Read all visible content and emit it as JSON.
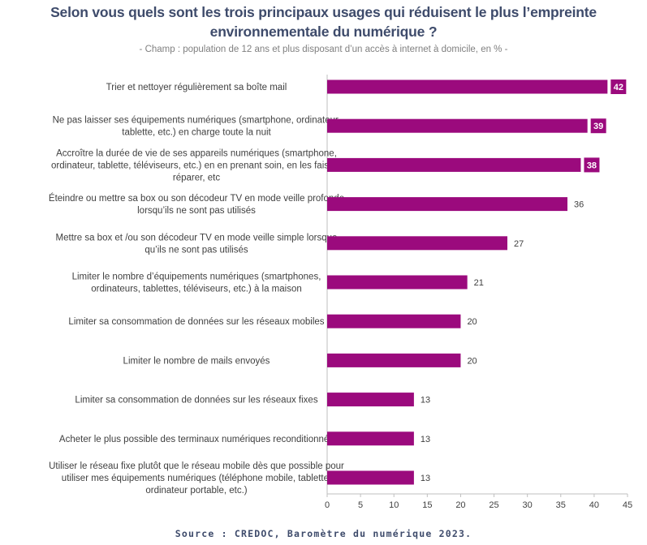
{
  "title": "Selon vous quels sont les trois principaux usages qui réduisent le plus l’empreinte environnementale du numérique ?",
  "subtitle": "- Champ : population de 12 ans et plus disposant d’un accès à internet à domicile, en % -",
  "source": "Source : CREDOC, Baromètre du numérique 2023.",
  "colors": {
    "bar": "#9b0a7d",
    "title": "#3e4b6b",
    "highlight_label_bg": "#9b0a7d"
  },
  "chart_data": {
    "type": "bar",
    "orientation": "horizontal",
    "categories": [
      [
        "Trier et nettoyer régulièrement sa boîte mail"
      ],
      [
        "Ne pas laisser ses équipements numériques (smartphone, ordinateur,",
        "tablette, etc.) en charge toute la nuit"
      ],
      [
        "Accroître la durée de vie de ses appareils numériques (smartphone,",
        "ordinateur, tablette, téléviseurs, etc.) en en prenant soin, en les faisant",
        "réparer, etc"
      ],
      [
        "Éteindre ou mettre sa box ou son décodeur TV en mode veille profonde",
        "lorsqu’ils ne sont pas utilisés"
      ],
      [
        "Mettre sa box et /ou son décodeur TV en mode veille simple lorsque",
        "qu’ils ne sont pas utilisés"
      ],
      [
        "Limiter le nombre d’équipements numériques (smartphones,",
        "ordinateurs, tablettes, téléviseurs, etc.) à la maison"
      ],
      [
        "Limiter sa consommation de données sur les réseaux mobiles"
      ],
      [
        "Limiter le nombre de mails envoyés"
      ],
      [
        "Limiter sa consommation de données sur les réseaux fixes"
      ],
      [
        "Acheter le plus possible des terminaux numériques reconditionnés"
      ],
      [
        "Utiliser le réseau fixe plutôt que le réseau mobile dès que possible pour",
        "utiliser mes équipements numériques (téléphone mobile, tablette,",
        "ordinateur portable, etc.)"
      ]
    ],
    "values": [
      42,
      39,
      38,
      36,
      27,
      21,
      20,
      20,
      13,
      13,
      13
    ],
    "highlighted": [
      true,
      true,
      true,
      false,
      false,
      false,
      false,
      false,
      false,
      false,
      false
    ],
    "xlim": [
      0,
      45
    ],
    "xticks": [
      0,
      5,
      10,
      15,
      20,
      25,
      30,
      35,
      40,
      45
    ],
    "grid": false,
    "legend": "none"
  }
}
